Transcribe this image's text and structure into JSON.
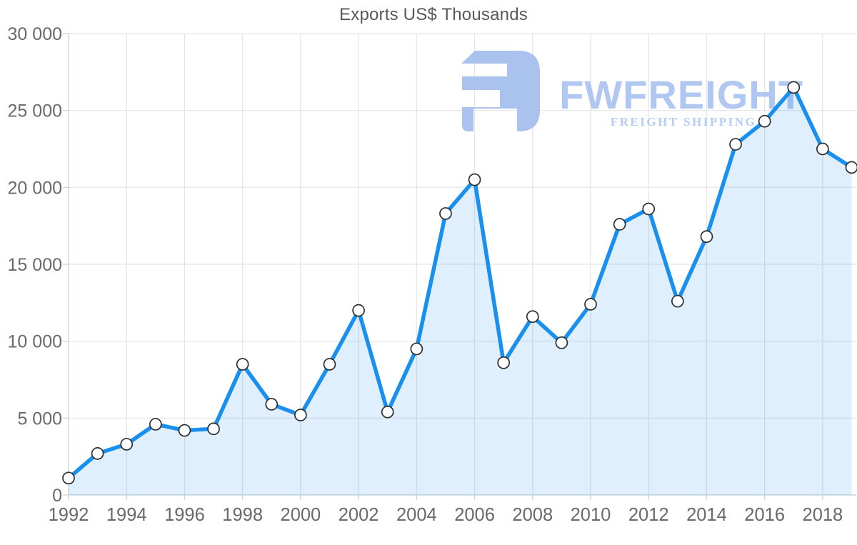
{
  "chart_data": {
    "type": "area",
    "title": "Exports US$ Thousands",
    "xlabel": "",
    "ylabel": "",
    "x": [
      1992,
      1993,
      1994,
      1995,
      1996,
      1997,
      1998,
      1999,
      2000,
      2001,
      2002,
      2003,
      2004,
      2005,
      2006,
      2007,
      2008,
      2009,
      2010,
      2011,
      2012,
      2013,
      2014,
      2015,
      2016,
      2017,
      2018,
      2019
    ],
    "series": [
      {
        "name": "Exports US$ Thousands",
        "values": [
          1100,
          2700,
          3300,
          4600,
          4200,
          4300,
          8500,
          5900,
          5200,
          8500,
          12000,
          5400,
          9500,
          18300,
          20500,
          8600,
          11600,
          9900,
          12400,
          17600,
          18600,
          12600,
          16800,
          22800,
          24300,
          26500,
          22500,
          21300
        ]
      }
    ],
    "ylim": [
      0,
      30000
    ],
    "ytick_interval": 5000,
    "y_tick_labels": [
      "0",
      "5 000",
      "10 000",
      "15 000",
      "20 000",
      "25 000",
      "30 000"
    ],
    "x_tick_labels": [
      "1992",
      "1994",
      "1996",
      "1998",
      "2000",
      "2002",
      "2004",
      "2006",
      "2008",
      "2010",
      "2012",
      "2014",
      "2016",
      "2018"
    ],
    "grid": true,
    "legend": "none",
    "marker_style": "circle",
    "colors": {
      "line": "#1a90ee",
      "area_fill": "#1a90ee",
      "area_fill_opacity": "0.14",
      "marker_fill": "#ffffff",
      "marker_stroke": "#2e2e2e",
      "gridline": "#e4e4e4",
      "axis": "#ccd5dc",
      "label_text": "#6a6a6a",
      "title_text": "#595959"
    }
  },
  "watermark": {
    "brand": "FWFREIGHT",
    "tagline": "FREIGHT SHIPPING",
    "icon": "fwfreight-logo-icon",
    "color_icon": "#a9c2ee",
    "color_brand": "#b0c7f2",
    "color_tagline": "#b6ccf4"
  }
}
